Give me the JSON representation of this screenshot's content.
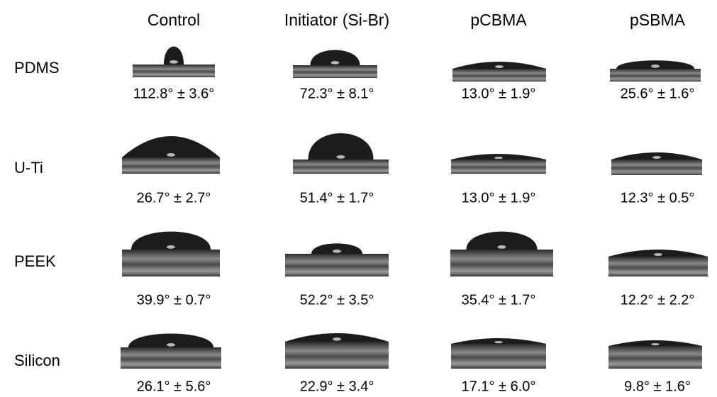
{
  "columns": [
    "Control",
    "Initiator (Si-Br)",
    "pCBMA",
    "pSBMA"
  ],
  "rows": [
    {
      "label": "PDMS",
      "cells": [
        "112.8° ± 3.6°",
        "72.3° ± 8.1°",
        "13.0° ± 1.9°",
        "25.6° ± 1.6°"
      ]
    },
    {
      "label": "U-Ti",
      "cells": [
        "26.7° ± 2.7°",
        "51.4° ± 1.7°",
        "13.0° ± 1.9°",
        "12.3° ± 0.5°"
      ]
    },
    {
      "label": "PEEK",
      "cells": [
        "39.9° ± 0.7°",
        "52.2° ± 3.5°",
        "35.4° ± 1.7°",
        "12.2° ± 2.2°"
      ]
    },
    {
      "label": "Silicon",
      "cells": [
        "26.1° ± 5.6°",
        "22.9° ± 3.4°",
        "17.1° ± 6.0°",
        "9.8° ± 1.6°"
      ]
    }
  ]
}
